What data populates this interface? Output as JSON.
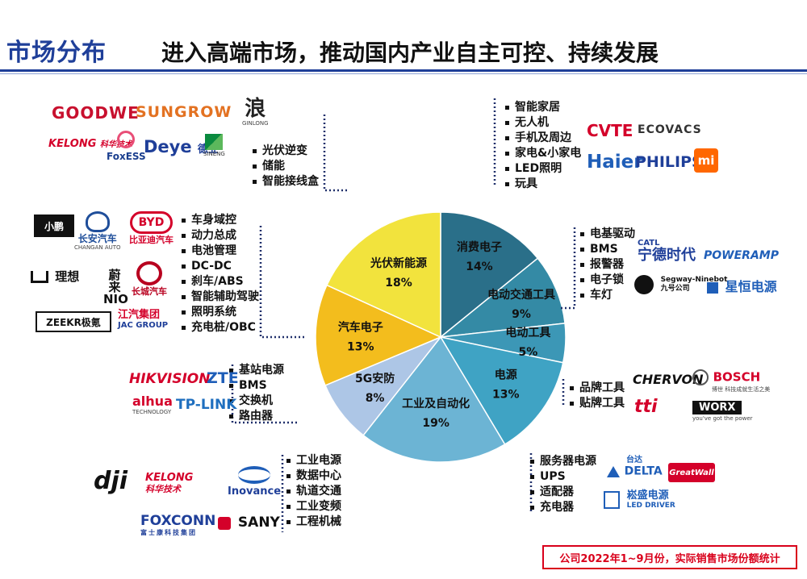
{
  "header": {
    "section_title": "市场分布",
    "headline": "进入高端市场，推动国内产业自主可控、持续发展"
  },
  "chart_data": {
    "type": "pie",
    "title": "",
    "slices": [
      {
        "label": "消费电子",
        "value": 14,
        "pct": "14%",
        "color": "#2a6f89"
      },
      {
        "label": "电动交通工具",
        "value": 9,
        "pct": "9%",
        "color": "#348aa5"
      },
      {
        "label": "电动工具",
        "value": 5,
        "pct": "5%",
        "color": "#3c97b6"
      },
      {
        "label": "电源",
        "value": 13,
        "pct": "13%",
        "color": "#3fa3c4"
      },
      {
        "label": "工业及自动化",
        "value": 19,
        "pct": "19%",
        "color": "#6cb4d4"
      },
      {
        "label": "5G安防",
        "value": 8,
        "pct": "8%",
        "color": "#adc6e6"
      },
      {
        "label": "汽车电子",
        "value": 13,
        "pct": "13%",
        "color": "#f3bd1d"
      },
      {
        "label": "光伏新能源",
        "value": 18,
        "pct": "18%",
        "color": "#f2e33d"
      }
    ],
    "start_angle_deg": 0,
    "direction": "clockwise"
  },
  "applications": {
    "consumer": [
      "智能家居",
      "无人机",
      "手机及周边",
      "家电&小家电",
      "LED照明",
      "玩具"
    ],
    "ev": [
      "电基驱动",
      "BMS",
      "报警器",
      "电子锁",
      "车灯"
    ],
    "tools": [
      "品牌工具",
      "贴牌工具"
    ],
    "power": [
      "服务器电源",
      "UPS",
      "适配器",
      "充电器"
    ],
    "industrial": [
      "工业电源",
      "数据中心",
      "轨道交通",
      "工业变频",
      "工程机械"
    ],
    "security5g": [
      "基站电源",
      "BMS",
      "交换机",
      "路由器"
    ],
    "auto": [
      "车身域控",
      "动力总成",
      "电池管理",
      "DC-DC",
      "刹车/ABS",
      "智能辅助驾驶",
      "照明系统",
      "充电桩/OBC"
    ],
    "solar": [
      "光伏逆变",
      "储能",
      "智能接线盒"
    ]
  },
  "logos": {
    "goodwe": "GOODWE",
    "sungrow": "SUNGROW",
    "ginlong": "GINLONG",
    "kelong_top": "KELONG",
    "kelong_top_sub": "科华技术",
    "foxess": "FoxESS",
    "deye": "Deye",
    "deye_cn": "德业",
    "sineng": "SINENG",
    "cvte": "CVTE",
    "ecovacs": "ECOVACS",
    "haier": "Haier",
    "philips": "PHILIPS",
    "mi": "mi",
    "xpeng": "小鹏",
    "changan": "长安汽车",
    "changan_sub": "CHANGAN AUTO",
    "byd": "BYD",
    "byd_cn": "比亚迪汽车",
    "lixiang": "理想",
    "nio": "蔚来 NIO",
    "great_wall_auto": "长城汽车",
    "zeekr": "ZEEKR极氪",
    "jac": "江汽集团",
    "jac_sub": "JAC GROUP",
    "catl_top": "CATL",
    "catl": "宁德时代",
    "poweramp": "POWERAMP",
    "segway": "Segway-Ninebot",
    "segway_cn": "九号公司",
    "xingheng": "星恒电源",
    "hikvision": "HIKVISION",
    "zte": "ZTE",
    "dahua": "alhua",
    "dahua_sub": "TECHNOLOGY",
    "tplink": "TP-LINK",
    "chervon": "CHERVON",
    "bosch": "BOSCH",
    "bosch_sub": "博世 科技成就生活之美",
    "tti": "tti",
    "worx": "WORX",
    "worx_sub": "you've got the power",
    "dji": "dji",
    "kelong_bottom": "KELONG",
    "kelong_bottom_sub": "科华技术",
    "inovance": "Inovance",
    "foxconn": "FOXCONN",
    "foxconn_sub": "富士康科技集团",
    "sany": "SANY",
    "delta_cn": "台达",
    "delta": "DELTA",
    "greatwall_power": "GreatWall",
    "sosen": "崧盛电源",
    "sosen_sub": "LED DRIVER"
  },
  "footer": {
    "note": "公司2022年1~9月份，实际销售市场份额统计"
  },
  "colors": {
    "brand_blue": "#1f3f99",
    "note_red": "#d9001b"
  }
}
